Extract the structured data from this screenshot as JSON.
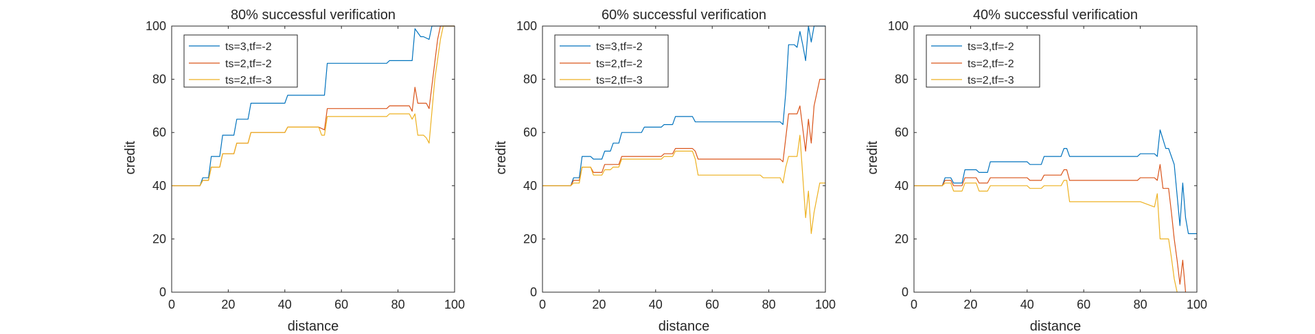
{
  "figure": {
    "colors": {
      "axis": "#262626",
      "background": "#ffffff"
    },
    "charts": [
      {
        "title": "80% successful verification",
        "xlabel": "distance",
        "ylabel": "credit",
        "xticks": [
          "0",
          "20",
          "40",
          "60",
          "80",
          "100"
        ],
        "yticks": [
          "0",
          "20",
          "40",
          "60",
          "80",
          "100"
        ],
        "legend": [
          "ts=3,tf=-2",
          "ts=2,tf=-2",
          "ts=2,tf=-3"
        ]
      },
      {
        "title": "60% successful verification",
        "xlabel": "distance",
        "ylabel": "credit",
        "xticks": [
          "0",
          "20",
          "40",
          "60",
          "80",
          "100"
        ],
        "yticks": [
          "0",
          "20",
          "40",
          "60",
          "80",
          "100"
        ],
        "legend": [
          "ts=3,tf=-2",
          "ts=2,tf=-2",
          "ts=2,tf=-3"
        ]
      },
      {
        "title": "40% successful verification",
        "xlabel": "distance",
        "ylabel": "credit",
        "xticks": [
          "0",
          "20",
          "40",
          "60",
          "80",
          "100"
        ],
        "yticks": [
          "0",
          "20",
          "40",
          "60",
          "80",
          "100"
        ],
        "legend": [
          "ts=3,tf=-2",
          "ts=2,tf=-2",
          "ts=2,tf=-3"
        ]
      }
    ]
  },
  "chart_data": [
    {
      "type": "line",
      "title": "80% successful verification",
      "xlabel": "distance",
      "ylabel": "credit",
      "xlim": [
        0,
        100
      ],
      "ylim": [
        0,
        100
      ],
      "grid": false,
      "legend_position": "top-left",
      "series": [
        {
          "name": "ts=3,tf=-2",
          "color": "#0072BD",
          "x": [
            0,
            10,
            11,
            13,
            14,
            17,
            18,
            22,
            23,
            27,
            28,
            40,
            41,
            54,
            55,
            76,
            77,
            85,
            86,
            88,
            89,
            91,
            92,
            100
          ],
          "y": [
            40,
            40,
            43,
            43,
            51,
            51,
            59,
            59,
            65,
            65,
            71,
            71,
            74,
            74,
            86,
            86,
            87,
            87,
            99,
            96,
            96,
            95,
            100,
            100
          ]
        },
        {
          "name": "ts=2,tf=-2",
          "color": "#D95319",
          "x": [
            0,
            10,
            11,
            13,
            14,
            17,
            18,
            22,
            23,
            27,
            28,
            40,
            41,
            46,
            52,
            54,
            55,
            76,
            77,
            84,
            85,
            86,
            87,
            90,
            91,
            94,
            95,
            100
          ],
          "y": [
            40,
            40,
            42,
            42,
            47,
            47,
            52,
            52,
            56,
            56,
            60,
            60,
            62,
            62,
            62,
            61,
            69,
            69,
            70,
            70,
            68,
            77,
            71,
            71,
            69,
            95,
            100,
            100
          ]
        },
        {
          "name": "ts=2,tf=-3",
          "color": "#EDB120",
          "x": [
            0,
            10,
            11,
            13,
            14,
            17,
            18,
            22,
            23,
            27,
            28,
            40,
            41,
            52,
            53,
            54,
            55,
            76,
            77,
            84,
            85,
            86,
            87,
            89,
            90,
            91,
            93,
            95,
            96,
            100
          ],
          "y": [
            40,
            40,
            42,
            42,
            47,
            47,
            52,
            52,
            56,
            56,
            60,
            60,
            62,
            62,
            59,
            59,
            66,
            66,
            67,
            67,
            65,
            67,
            59,
            59,
            58,
            56,
            80,
            95,
            100,
            100
          ]
        }
      ]
    },
    {
      "type": "line",
      "title": "60% successful verification",
      "xlabel": "distance",
      "ylabel": "credit",
      "xlim": [
        0,
        100
      ],
      "ylim": [
        0,
        100
      ],
      "grid": false,
      "legend_position": "top-left",
      "series": [
        {
          "name": "ts=3,tf=-2",
          "color": "#0072BD",
          "x": [
            0,
            10,
            11,
            13,
            14,
            17,
            18,
            21,
            22,
            24,
            25,
            27,
            28,
            35,
            36,
            42,
            43,
            46,
            47,
            53,
            54,
            84,
            85,
            86,
            87,
            89,
            90,
            91,
            92,
            93,
            94,
            95,
            96,
            98,
            100
          ],
          "y": [
            40,
            40,
            43,
            43,
            51,
            51,
            50,
            50,
            53,
            53,
            56,
            56,
            60,
            60,
            62,
            62,
            63,
            63,
            66,
            66,
            64,
            64,
            63,
            75,
            93,
            93,
            92,
            98,
            93,
            87,
            100,
            94,
            100,
            100,
            100
          ]
        },
        {
          "name": "ts=2,tf=-2",
          "color": "#D95319",
          "x": [
            0,
            10,
            11,
            13,
            14,
            17,
            18,
            21,
            22,
            24,
            25,
            27,
            28,
            35,
            36,
            42,
            43,
            46,
            47,
            53,
            54,
            55,
            84,
            85,
            86,
            87,
            90,
            91,
            93,
            94,
            95,
            96,
            98,
            100
          ],
          "y": [
            40,
            40,
            42,
            42,
            47,
            47,
            45,
            45,
            48,
            48,
            48,
            48,
            51,
            51,
            51,
            51,
            52,
            52,
            54,
            54,
            53,
            50,
            50,
            49,
            58,
            67,
            67,
            70,
            53,
            65,
            56,
            70,
            80,
            80
          ]
        },
        {
          "name": "ts=2,tf=-3",
          "color": "#EDB120",
          "x": [
            0,
            10,
            11,
            13,
            14,
            17,
            18,
            21,
            22,
            24,
            25,
            27,
            28,
            35,
            36,
            42,
            43,
            46,
            47,
            53,
            54,
            55,
            77,
            78,
            84,
            85,
            86,
            87,
            90,
            91,
            93,
            94,
            95,
            96,
            98,
            100
          ],
          "y": [
            40,
            40,
            41,
            41,
            47,
            47,
            44,
            44,
            46,
            46,
            47,
            47,
            50,
            50,
            50,
            50,
            51,
            51,
            53,
            53,
            50,
            44,
            44,
            43,
            43,
            41,
            47,
            51,
            51,
            59,
            28,
            38,
            22,
            30,
            41,
            41
          ]
        }
      ]
    },
    {
      "type": "line",
      "title": "40% successful verification",
      "xlabel": "distance",
      "ylabel": "credit",
      "xlim": [
        0,
        100
      ],
      "ylim": [
        0,
        100
      ],
      "grid": false,
      "legend_position": "top-left",
      "series": [
        {
          "name": "ts=3,tf=-2",
          "color": "#0072BD",
          "x": [
            0,
            10,
            11,
            13,
            14,
            17,
            18,
            22,
            23,
            26,
            27,
            40,
            41,
            45,
            46,
            52,
            53,
            54,
            55,
            79,
            80,
            85,
            86,
            87,
            89,
            90,
            92,
            94,
            95,
            96,
            97,
            100
          ],
          "y": [
            40,
            40,
            43,
            43,
            41,
            41,
            46,
            46,
            45,
            45,
            49,
            49,
            48,
            48,
            51,
            51,
            54,
            54,
            51,
            51,
            52,
            52,
            51,
            61,
            54,
            54,
            48,
            25,
            41,
            28,
            22,
            22
          ]
        },
        {
          "name": "ts=2,tf=-2",
          "color": "#D95319",
          "x": [
            0,
            10,
            11,
            13,
            14,
            17,
            18,
            22,
            23,
            26,
            27,
            40,
            41,
            45,
            46,
            52,
            53,
            54,
            55,
            79,
            80,
            85,
            86,
            87,
            88,
            90,
            91,
            92,
            93,
            94,
            95,
            96
          ],
          "y": [
            40,
            40,
            42,
            42,
            40,
            40,
            43,
            43,
            41,
            41,
            43,
            43,
            42,
            42,
            44,
            44,
            46,
            46,
            42,
            42,
            43,
            43,
            42,
            48,
            39,
            39,
            30,
            20,
            12,
            3,
            12,
            0
          ]
        },
        {
          "name": "ts=2,tf=-3",
          "color": "#EDB120",
          "x": [
            0,
            10,
            11,
            13,
            14,
            17,
            18,
            22,
            23,
            26,
            27,
            40,
            41,
            45,
            46,
            52,
            53,
            54,
            55,
            79,
            80,
            85,
            86,
            87,
            88,
            90,
            91,
            92,
            93
          ],
          "y": [
            40,
            40,
            41,
            41,
            38,
            38,
            41,
            41,
            38,
            38,
            40,
            40,
            39,
            39,
            40,
            40,
            42,
            42,
            34,
            34,
            34,
            32,
            37,
            20,
            20,
            20,
            13,
            5,
            0
          ]
        }
      ]
    }
  ]
}
